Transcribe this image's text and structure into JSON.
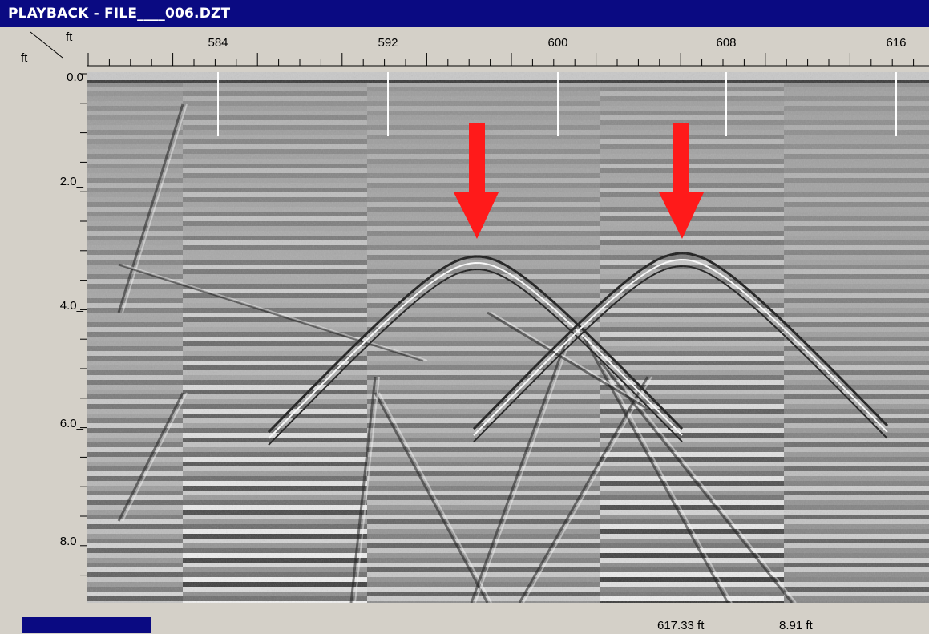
{
  "window": {
    "title": "PLAYBACK - FILE____006.DZT"
  },
  "corner": {
    "top_unit": "ft",
    "left_unit": "ft"
  },
  "horizontal_scale": {
    "labels": [
      "584",
      "592",
      "600",
      "608",
      "616"
    ]
  },
  "vertical_scale": {
    "labels": [
      "0.0",
      "2.0_",
      "4.0_",
      "6.0_",
      "8.0_"
    ]
  },
  "markers": {
    "count": 2,
    "color": "#ff1a1a"
  },
  "status": {
    "progress_fraction": 0.14,
    "distance": "617.33 ft",
    "depth": "8.91 ft"
  },
  "colors": {
    "titlebar": "#0a0a82",
    "panel": "#d4d0c8",
    "marker": "#ff1a1a"
  }
}
